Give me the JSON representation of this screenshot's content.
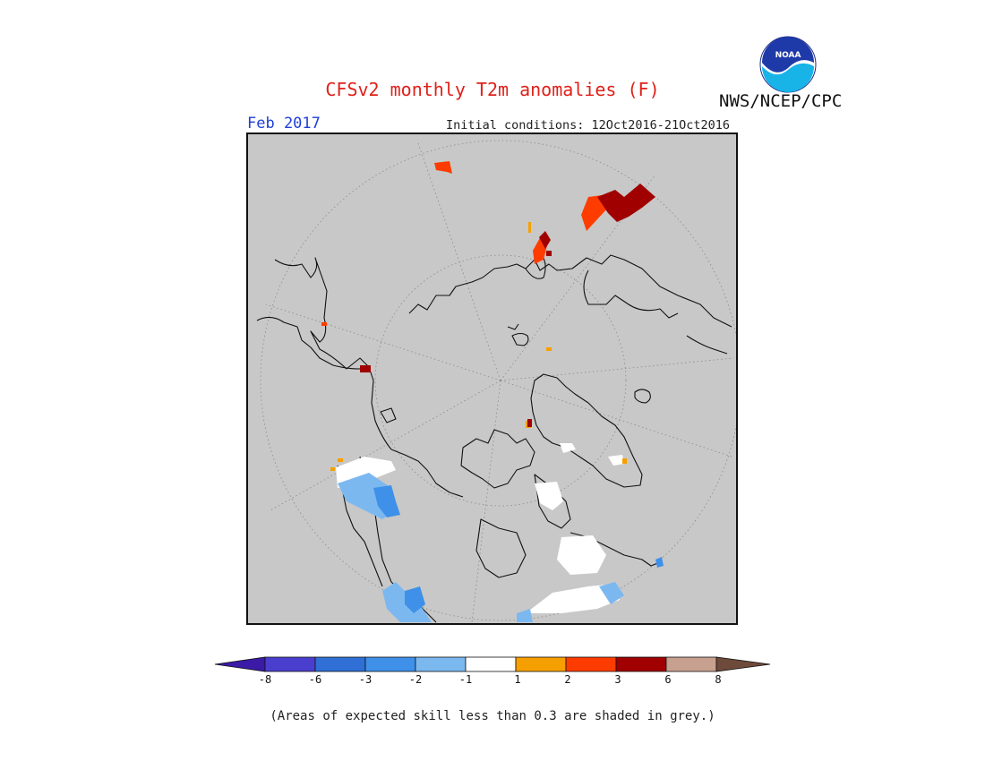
{
  "header": {
    "title": "CFSv2 monthly T2m anomalies (F)",
    "org": "NWS/NCEP/CPC",
    "logo_text": "NOAA",
    "month": "Feb 2017",
    "initial_conditions": "Initial conditions: 12Oct2016-21Oct2016"
  },
  "colors": {
    "title": "#e0201a",
    "month": "#1f3fd8",
    "mask_grey": "#c8c8c8",
    "neutral": "#ffffff"
  },
  "legend": {
    "labels": [
      "-8",
      "-6",
      "-3",
      "-2",
      "-1",
      "1",
      "2",
      "3",
      "6",
      "8"
    ],
    "colors": [
      "#3a1aa6",
      "#4a3ecf",
      "#2f6fd6",
      "#3e90e8",
      "#7cb8f0",
      "#ffffff",
      "#f5a000",
      "#ff3c00",
      "#a00000",
      "#c8a090",
      "#6e4a3a"
    ]
  },
  "footnote": "(Areas of expected skill less than 0.3 are shaded in grey.)"
}
